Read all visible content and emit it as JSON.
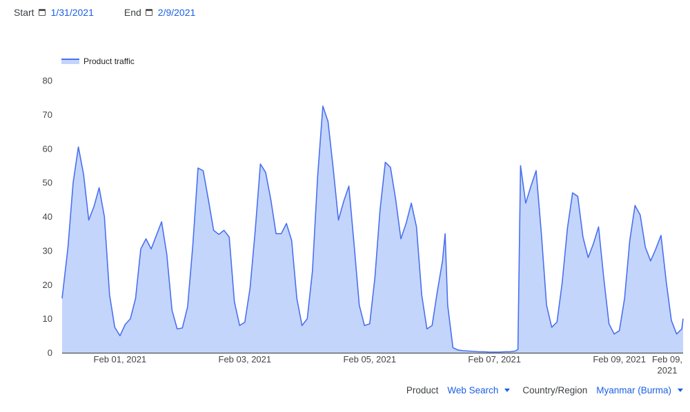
{
  "header": {
    "start_label": "Start",
    "start_value": "1/31/2021",
    "start_icon": "calendar-icon",
    "end_label": "End",
    "end_value": "2/9/2021",
    "end_icon": "calendar-icon"
  },
  "controls": {
    "product_label": "Product",
    "product_value": "Web Search",
    "region_label": "Country/Region",
    "region_value": "Myanmar (Burma)"
  },
  "colors": {
    "line": "#4a6ff0",
    "fill": "#c3d5fb",
    "link": "#1a5fe6"
  },
  "chart_data": {
    "type": "area",
    "title": "",
    "xlabel": "",
    "ylabel": "",
    "ylim": [
      0,
      80
    ],
    "yticks": [
      "0",
      "10",
      "20",
      "30",
      "40",
      "50",
      "60",
      "70",
      "80"
    ],
    "xticks": [
      {
        "date": "2021-02-01",
        "label": "Feb 01, 2021"
      },
      {
        "date": "2021-02-03",
        "label": "Feb 03, 2021"
      },
      {
        "date": "2021-02-05",
        "label": "Feb 05, 2021"
      },
      {
        "date": "2021-02-07",
        "label": "Feb 07, 2021"
      },
      {
        "date": "2021-02-09",
        "label": "Feb 09, 2021"
      }
    ],
    "end_label": [
      "Feb 09,",
      "2021"
    ],
    "grid": false,
    "legend_position": "top-left",
    "series": [
      {
        "name": "Product traffic",
        "points": [
          [
            "2021-01-31 01:45",
            16
          ],
          [
            "2021-01-31 04:00",
            31
          ],
          [
            "2021-01-31 06:00",
            50
          ],
          [
            "2021-01-31 08:00",
            60.5
          ],
          [
            "2021-01-31 10:00",
            52.5
          ],
          [
            "2021-01-31 12:00",
            39
          ],
          [
            "2021-01-31 14:00",
            43
          ],
          [
            "2021-01-31 16:00",
            48.5
          ],
          [
            "2021-01-31 18:00",
            40
          ],
          [
            "2021-01-31 20:00",
            17
          ],
          [
            "2021-01-31 22:00",
            7.5
          ],
          [
            "2021-02-01 00:00",
            5
          ],
          [
            "2021-02-01 02:00",
            8.3
          ],
          [
            "2021-02-01 04:00",
            10
          ],
          [
            "2021-02-01 06:00",
            16
          ],
          [
            "2021-02-01 08:00",
            30.5
          ],
          [
            "2021-02-01 10:00",
            33.5
          ],
          [
            "2021-02-01 12:00",
            30.5
          ],
          [
            "2021-02-01 14:00",
            34.5
          ],
          [
            "2021-02-01 16:00",
            38.5
          ],
          [
            "2021-02-01 18:00",
            29
          ],
          [
            "2021-02-01 20:00",
            12.5
          ],
          [
            "2021-02-01 22:00",
            7
          ],
          [
            "2021-02-02 00:00",
            7.3
          ],
          [
            "2021-02-02 02:00",
            13.5
          ],
          [
            "2021-02-02 04:00",
            31.5
          ],
          [
            "2021-02-02 06:00",
            54.3
          ],
          [
            "2021-02-02 08:00",
            53.5
          ],
          [
            "2021-02-02 10:00",
            45
          ],
          [
            "2021-02-02 12:00",
            36
          ],
          [
            "2021-02-02 14:00",
            34.8
          ],
          [
            "2021-02-02 16:00",
            36
          ],
          [
            "2021-02-02 18:00",
            34
          ],
          [
            "2021-02-02 20:00",
            15
          ],
          [
            "2021-02-02 22:00",
            8
          ],
          [
            "2021-02-03 00:00",
            9
          ],
          [
            "2021-02-03 02:00",
            19
          ],
          [
            "2021-02-03 04:00",
            36
          ],
          [
            "2021-02-03 06:00",
            55.5
          ],
          [
            "2021-02-03 08:00",
            53
          ],
          [
            "2021-02-03 10:00",
            45
          ],
          [
            "2021-02-03 12:00",
            35
          ],
          [
            "2021-02-03 14:00",
            35
          ],
          [
            "2021-02-03 16:00",
            38
          ],
          [
            "2021-02-03 18:00",
            33
          ],
          [
            "2021-02-03 20:00",
            16
          ],
          [
            "2021-02-03 22:00",
            8
          ],
          [
            "2021-02-04 00:00",
            10
          ],
          [
            "2021-02-04 02:00",
            24
          ],
          [
            "2021-02-04 04:00",
            52
          ],
          [
            "2021-02-04 06:00",
            72.5
          ],
          [
            "2021-02-04 08:00",
            68
          ],
          [
            "2021-02-04 10:00",
            54
          ],
          [
            "2021-02-04 12:00",
            39
          ],
          [
            "2021-02-04 14:00",
            44.5
          ],
          [
            "2021-02-04 16:00",
            49
          ],
          [
            "2021-02-04 18:00",
            32
          ],
          [
            "2021-02-04 20:00",
            14
          ],
          [
            "2021-02-04 22:00",
            8
          ],
          [
            "2021-02-05 00:00",
            8.5
          ],
          [
            "2021-02-05 02:00",
            22
          ],
          [
            "2021-02-05 04:00",
            42
          ],
          [
            "2021-02-05 06:00",
            56
          ],
          [
            "2021-02-05 08:00",
            54.5
          ],
          [
            "2021-02-05 10:00",
            45
          ],
          [
            "2021-02-05 12:00",
            33.5
          ],
          [
            "2021-02-05 14:00",
            38
          ],
          [
            "2021-02-05 16:00",
            44
          ],
          [
            "2021-02-05 18:00",
            37
          ],
          [
            "2021-02-05 20:00",
            17
          ],
          [
            "2021-02-05 22:00",
            7
          ],
          [
            "2021-02-06 00:00",
            8
          ],
          [
            "2021-02-06 02:00",
            18
          ],
          [
            "2021-02-06 04:00",
            27
          ],
          [
            "2021-02-06 05:00",
            35
          ],
          [
            "2021-02-06 06:00",
            14
          ],
          [
            "2021-02-06 08:00",
            1.5
          ],
          [
            "2021-02-06 10:00",
            0.8
          ],
          [
            "2021-02-06 12:00",
            0.6
          ],
          [
            "2021-02-06 14:00",
            0.5
          ],
          [
            "2021-02-06 16:00",
            0.4
          ],
          [
            "2021-02-06 18:00",
            0.3
          ],
          [
            "2021-02-06 20:00",
            0.3
          ],
          [
            "2021-02-06 22:00",
            0.2
          ],
          [
            "2021-02-07 00:00",
            0.2
          ],
          [
            "2021-02-07 02:00",
            0.2
          ],
          [
            "2021-02-07 04:00",
            0.3
          ],
          [
            "2021-02-07 06:00",
            0.3
          ],
          [
            "2021-02-07 08:00",
            0.5
          ],
          [
            "2021-02-07 09:00",
            1
          ],
          [
            "2021-02-07 10:00",
            55
          ],
          [
            "2021-02-07 12:00",
            44
          ],
          [
            "2021-02-07 14:00",
            49
          ],
          [
            "2021-02-07 16:00",
            53.5
          ],
          [
            "2021-02-07 18:00",
            35
          ],
          [
            "2021-02-07 20:00",
            14
          ],
          [
            "2021-02-07 22:00",
            7.5
          ],
          [
            "2021-02-08 00:00",
            9
          ],
          [
            "2021-02-08 02:00",
            20.5
          ],
          [
            "2021-02-08 04:00",
            36.5
          ],
          [
            "2021-02-08 06:00",
            47
          ],
          [
            "2021-02-08 08:00",
            46
          ],
          [
            "2021-02-08 10:00",
            34
          ],
          [
            "2021-02-08 12:00",
            28
          ],
          [
            "2021-02-08 14:00",
            32
          ],
          [
            "2021-02-08 16:00",
            37
          ],
          [
            "2021-02-08 18:00",
            22
          ],
          [
            "2021-02-08 20:00",
            8.5
          ],
          [
            "2021-02-08 22:00",
            5.5
          ],
          [
            "2021-02-09 00:00",
            6.5
          ],
          [
            "2021-02-09 02:00",
            16
          ],
          [
            "2021-02-09 04:00",
            33
          ],
          [
            "2021-02-09 06:00",
            43.3
          ],
          [
            "2021-02-09 08:00",
            40.5
          ],
          [
            "2021-02-09 10:00",
            31
          ],
          [
            "2021-02-09 12:00",
            27
          ],
          [
            "2021-02-09 14:00",
            30.5
          ],
          [
            "2021-02-09 16:00",
            34.5
          ],
          [
            "2021-02-09 18:00",
            21
          ],
          [
            "2021-02-09 20:00",
            9.5
          ],
          [
            "2021-02-09 22:00",
            5.5
          ],
          [
            "2021-02-10 00:00",
            7
          ],
          [
            "2021-02-10 00:30",
            10
          ]
        ]
      }
    ]
  }
}
